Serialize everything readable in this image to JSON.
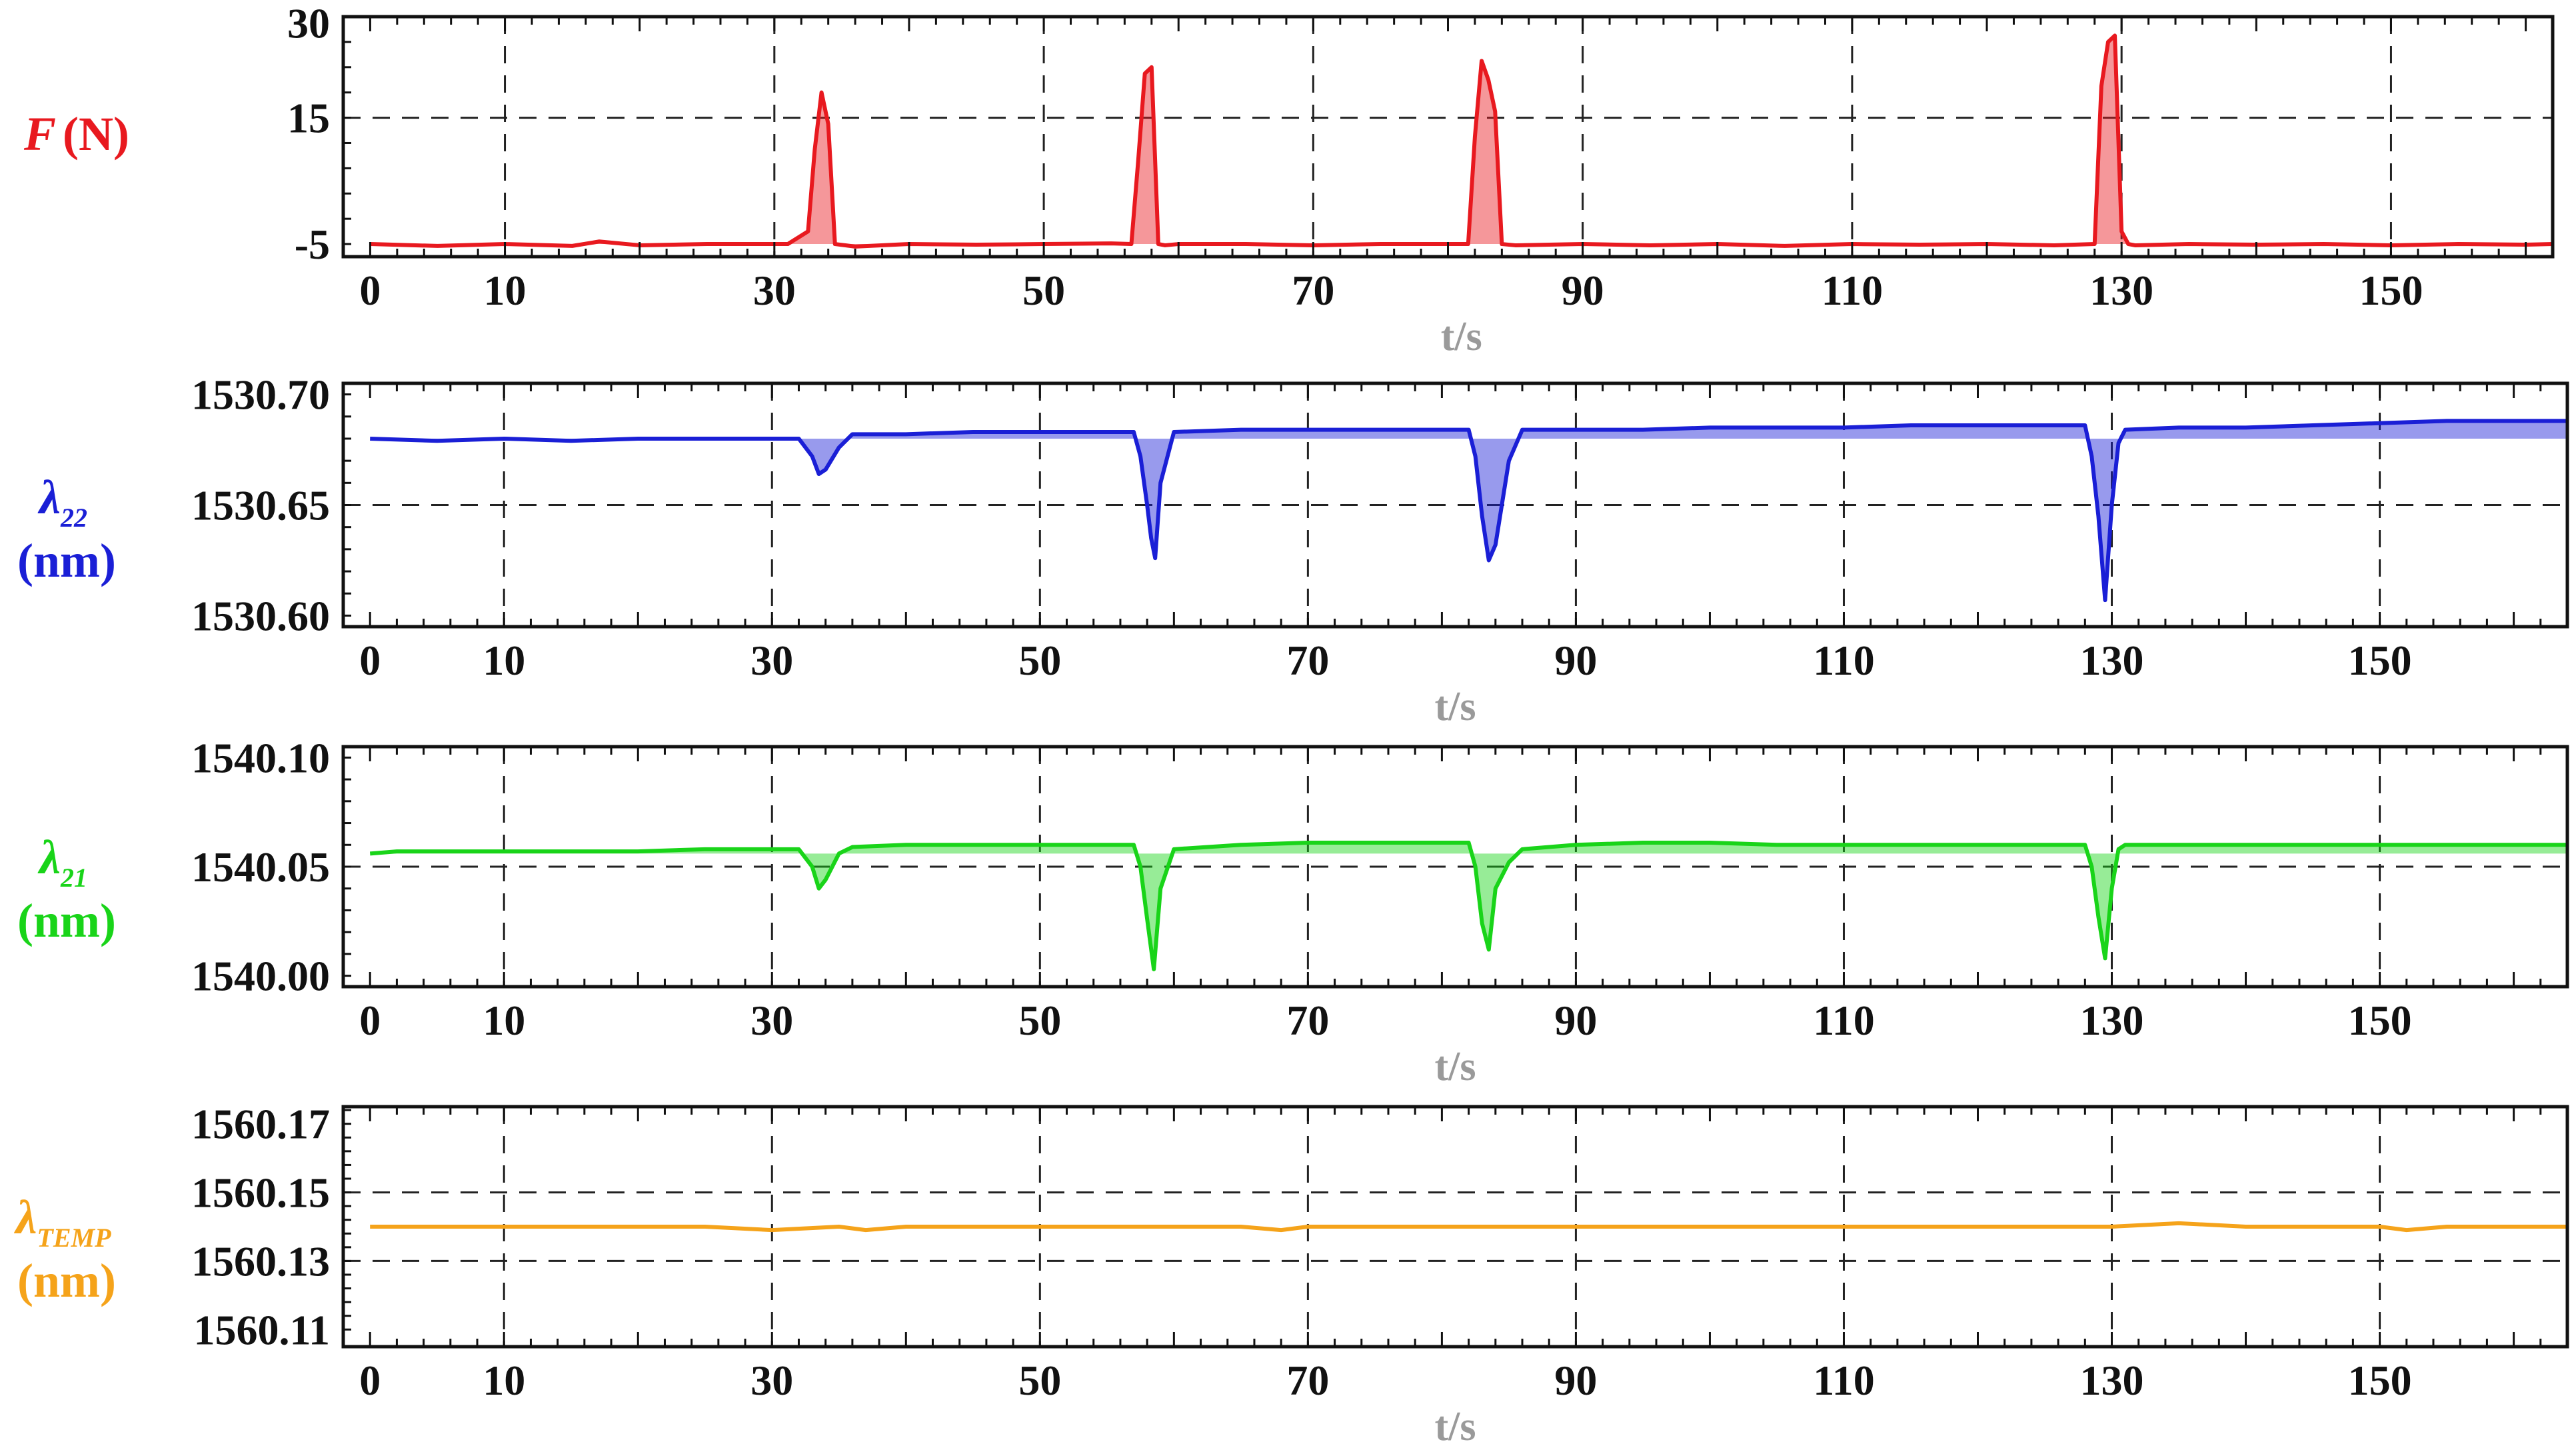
{
  "chart_data": [
    {
      "type": "area",
      "ylabel": {
        "symbol": "F",
        "unit": "(N)"
      },
      "xlabel": "t/s",
      "color": "#e8191f",
      "fill_baseline": -5,
      "ylim": [
        -7,
        31
      ],
      "yticks": [
        -5,
        15,
        30
      ],
      "ytick_labels": [
        "-5",
        "15",
        "30"
      ],
      "y_gridlines": [
        15
      ],
      "xlim": [
        -2,
        162
      ],
      "xticks": [
        0,
        10,
        30,
        50,
        70,
        90,
        110,
        130,
        150
      ],
      "x_gridlines": [
        10,
        30,
        50,
        70,
        90,
        110,
        130,
        150
      ],
      "grid": "dashed",
      "x": [
        0,
        5,
        10,
        15,
        17,
        20,
        25,
        31,
        32.5,
        33,
        33.5,
        34,
        34.5,
        36,
        40,
        45,
        50,
        55,
        56.5,
        57,
        57.5,
        58,
        58.5,
        59,
        60,
        65,
        70,
        75,
        80,
        81.5,
        82,
        82.5,
        83,
        83.5,
        84,
        85,
        90,
        95,
        100,
        105,
        110,
        115,
        120,
        125,
        128,
        128.5,
        129,
        129.5,
        130,
        130.5,
        131,
        135,
        140,
        145,
        150,
        155,
        160,
        162
      ],
      "y": [
        -5,
        -5.3,
        -5,
        -5.3,
        -4.6,
        -5.2,
        -5,
        -5,
        -3,
        10,
        19,
        14,
        -5,
        -5.4,
        -5,
        -5.1,
        -5,
        -4.9,
        -5,
        8,
        22,
        23,
        -5,
        -5.2,
        -5,
        -5,
        -5.2,
        -5,
        -5,
        -5,
        12,
        24,
        21,
        16,
        -5,
        -5.2,
        -5,
        -5.2,
        -5,
        -5.3,
        -5,
        -5.1,
        -5,
        -5.2,
        -5,
        20,
        27,
        28,
        -3,
        -5,
        -5.2,
        -5,
        -5.1,
        -5,
        -5.2,
        -5,
        -5.1,
        -5
      ]
    },
    {
      "type": "area",
      "ylabel": {
        "symbol": "λ",
        "subscript": "22",
        "unit": "(nm)"
      },
      "xlabel": "t/s",
      "color": "#1a1fd6",
      "ylim": [
        1530.595,
        1530.705
      ],
      "yticks": [
        1530.6,
        1530.65,
        1530.7
      ],
      "ytick_labels": [
        "1530.60",
        "1530.65",
        "1530.70"
      ],
      "y_gridlines": [
        1530.65
      ],
      "xlim": [
        -2,
        164
      ],
      "xticks": [
        0,
        10,
        30,
        50,
        70,
        90,
        110,
        130,
        150
      ],
      "x_gridlines": [
        10,
        30,
        50,
        70,
        90,
        110,
        130,
        150
      ],
      "grid": "dashed",
      "x": [
        0,
        5,
        10,
        15,
        20,
        25,
        30,
        32,
        33,
        33.5,
        34,
        35,
        36,
        40,
        45,
        50,
        55,
        57,
        57.5,
        58,
        58.3,
        58.6,
        59,
        60,
        65,
        70,
        75,
        80,
        82,
        82.5,
        83,
        83.5,
        84,
        85,
        86,
        90,
        95,
        100,
        105,
        110,
        115,
        120,
        125,
        128,
        128.5,
        129,
        129.5,
        130,
        130.5,
        131,
        135,
        140,
        145,
        150,
        155,
        160,
        164
      ],
      "y": [
        1530.68,
        1530.679,
        1530.68,
        1530.679,
        1530.68,
        1530.68,
        1530.68,
        1530.68,
        1530.672,
        1530.664,
        1530.666,
        1530.676,
        1530.682,
        1530.682,
        1530.683,
        1530.683,
        1530.683,
        1530.683,
        1530.672,
        1530.65,
        1530.635,
        1530.626,
        1530.66,
        1530.683,
        1530.684,
        1530.684,
        1530.684,
        1530.684,
        1530.684,
        1530.672,
        1530.645,
        1530.625,
        1530.632,
        1530.67,
        1530.684,
        1530.684,
        1530.684,
        1530.685,
        1530.685,
        1530.685,
        1530.686,
        1530.686,
        1530.686,
        1530.686,
        1530.672,
        1530.645,
        1530.607,
        1530.65,
        1530.678,
        1530.684,
        1530.685,
        1530.685,
        1530.686,
        1530.687,
        1530.688,
        1530.688,
        1530.688
      ]
    },
    {
      "type": "area",
      "ylabel": {
        "symbol": "λ",
        "subscript": "21",
        "unit": "(nm)"
      },
      "xlabel": "t/s",
      "color": "#19d419",
      "ylim": [
        1539.995,
        1540.105
      ],
      "yticks": [
        1540.0,
        1540.05,
        1540.1
      ],
      "ytick_labels": [
        "1540.00",
        "1540.05",
        "1540.10"
      ],
      "y_gridlines": [
        1540.05
      ],
      "xlim": [
        -2,
        164
      ],
      "xticks": [
        0,
        10,
        30,
        50,
        70,
        90,
        110,
        130,
        150
      ],
      "x_gridlines": [
        10,
        30,
        50,
        70,
        90,
        110,
        130,
        150
      ],
      "grid": "dashed",
      "x": [
        0,
        2,
        5,
        10,
        15,
        20,
        25,
        30,
        32,
        33,
        33.5,
        34,
        35,
        36,
        40,
        45,
        50,
        55,
        57,
        57.5,
        58,
        58.5,
        59,
        60,
        65,
        70,
        75,
        80,
        82,
        82.5,
        83,
        83.5,
        84,
        85,
        86,
        90,
        95,
        100,
        105,
        110,
        115,
        120,
        125,
        128,
        128.5,
        129,
        129.5,
        130,
        130.5,
        131,
        135,
        140,
        145,
        150,
        155,
        160,
        164
      ],
      "y": [
        1540.056,
        1540.057,
        1540.057,
        1540.057,
        1540.057,
        1540.057,
        1540.058,
        1540.058,
        1540.058,
        1540.05,
        1540.04,
        1540.044,
        1540.056,
        1540.059,
        1540.06,
        1540.06,
        1540.06,
        1540.06,
        1540.06,
        1540.05,
        1540.026,
        1540.003,
        1540.04,
        1540.058,
        1540.06,
        1540.061,
        1540.061,
        1540.061,
        1540.061,
        1540.05,
        1540.024,
        1540.012,
        1540.04,
        1540.052,
        1540.058,
        1540.06,
        1540.061,
        1540.061,
        1540.06,
        1540.06,
        1540.06,
        1540.06,
        1540.06,
        1540.06,
        1540.05,
        1540.027,
        1540.008,
        1540.04,
        1540.058,
        1540.06,
        1540.06,
        1540.06,
        1540.06,
        1540.06,
        1540.06,
        1540.06,
        1540.06
      ]
    },
    {
      "type": "line",
      "ylabel": {
        "symbol": "λ",
        "subscript": "TEMP",
        "unit": "(nm)"
      },
      "xlabel": "t/s",
      "color": "#f5a31a",
      "ylim": [
        1560.105,
        1560.175
      ],
      "yticks": [
        1560.11,
        1560.13,
        1560.15,
        1560.17
      ],
      "ytick_labels": [
        "1560.11",
        "1560.13",
        "1560.15",
        "1560.17"
      ],
      "y_gridlines": [
        1560.13,
        1560.15
      ],
      "xlim": [
        -2,
        164
      ],
      "xticks": [
        0,
        10,
        30,
        50,
        70,
        90,
        110,
        130,
        150
      ],
      "x_gridlines": [
        10,
        30,
        50,
        70,
        90,
        110,
        130,
        150
      ],
      "grid": "dashed",
      "x": [
        0,
        5,
        10,
        15,
        20,
        25,
        30,
        35,
        37,
        40,
        45,
        50,
        55,
        60,
        65,
        68,
        70,
        75,
        80,
        85,
        90,
        95,
        100,
        105,
        110,
        115,
        120,
        125,
        130,
        135,
        140,
        145,
        150,
        152,
        155,
        160,
        164
      ],
      "y": [
        1560.14,
        1560.14,
        1560.14,
        1560.14,
        1560.14,
        1560.14,
        1560.139,
        1560.14,
        1560.139,
        1560.14,
        1560.14,
        1560.14,
        1560.14,
        1560.14,
        1560.14,
        1560.139,
        1560.14,
        1560.14,
        1560.14,
        1560.14,
        1560.14,
        1560.14,
        1560.14,
        1560.14,
        1560.14,
        1560.14,
        1560.14,
        1560.14,
        1560.14,
        1560.141,
        1560.14,
        1560.14,
        1560.14,
        1560.139,
        1560.14,
        1560.14,
        1560.14
      ]
    }
  ]
}
